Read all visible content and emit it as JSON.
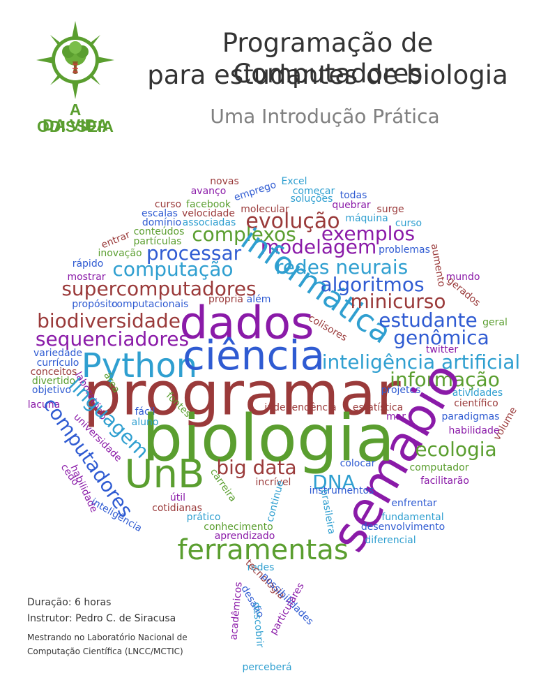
{
  "header": {
    "title_line1": "Programação de Computadores",
    "title_line2": "para estudantes de biologia",
    "subtitle": "Uma Introdução Prática"
  },
  "logo": {
    "line1": "A ODISSEIA",
    "line2": "DA VIDA",
    "icon": "compass-tree-icon",
    "color": "#5a9e2f"
  },
  "colors": {
    "red": "#9a3a3a",
    "green": "#5a9e2f",
    "blue": "#2f5bd2",
    "cyan": "#2f9fd0",
    "purple": "#8a1aa8"
  },
  "wordcloud": [
    {
      "t": "novas",
      "c": "red"
    },
    {
      "t": "Excel",
      "c": "cyan"
    },
    {
      "t": "avanço",
      "c": "purple"
    },
    {
      "t": "emprego",
      "c": "blue"
    },
    {
      "t": "começar",
      "c": "cyan"
    },
    {
      "t": "todas",
      "c": "blue"
    },
    {
      "t": "curso",
      "c": "red"
    },
    {
      "t": "facebook",
      "c": "green"
    },
    {
      "t": "soluções",
      "c": "cyan"
    },
    {
      "t": "quebrar",
      "c": "purple"
    },
    {
      "t": "escalas",
      "c": "blue"
    },
    {
      "t": "velocidade",
      "c": "red"
    },
    {
      "t": "molecular",
      "c": "red"
    },
    {
      "t": "surge",
      "c": "red"
    },
    {
      "t": "domínio",
      "c": "blue"
    },
    {
      "t": "associadas",
      "c": "cyan"
    },
    {
      "t": "máquina",
      "c": "cyan"
    },
    {
      "t": "curso",
      "c": "cyan"
    },
    {
      "t": "conteúdos",
      "c": "green"
    },
    {
      "t": "complexos",
      "c": "green"
    },
    {
      "t": "evolução",
      "c": "red"
    },
    {
      "t": "exemplos",
      "c": "purple"
    },
    {
      "t": "entrar",
      "c": "red"
    },
    {
      "t": "partículas",
      "c": "green"
    },
    {
      "t": "modelagem",
      "c": "purple"
    },
    {
      "t": "problemas",
      "c": "blue"
    },
    {
      "t": "inovação",
      "c": "green"
    },
    {
      "t": "processar",
      "c": "blue"
    },
    {
      "t": "aumento",
      "c": "red"
    },
    {
      "t": "rápido",
      "c": "blue"
    },
    {
      "t": "computação",
      "c": "cyan"
    },
    {
      "t": "informática",
      "c": "cyan"
    },
    {
      "t": "redes neurais",
      "c": "cyan"
    },
    {
      "t": "mostrar",
      "c": "purple"
    },
    {
      "t": "mundo",
      "c": "purple"
    },
    {
      "t": "algoritmos",
      "c": "blue"
    },
    {
      "t": "gerados",
      "c": "red"
    },
    {
      "t": "supercomputadores",
      "c": "red"
    },
    {
      "t": "minicurso",
      "c": "red"
    },
    {
      "t": "propósito",
      "c": "blue"
    },
    {
      "t": "computacionais",
      "c": "blue"
    },
    {
      "t": "própria",
      "c": "red"
    },
    {
      "t": "além",
      "c": "blue"
    },
    {
      "t": "dados",
      "c": "purple"
    },
    {
      "t": "biodiversidade",
      "c": "red"
    },
    {
      "t": "estudante",
      "c": "blue"
    },
    {
      "t": "geral",
      "c": "green"
    },
    {
      "t": "colisores",
      "c": "red"
    },
    {
      "t": "sequenciadores",
      "c": "purple"
    },
    {
      "t": "genômica",
      "c": "blue"
    },
    {
      "t": "twitter",
      "c": "purple"
    },
    {
      "t": "Python",
      "c": "cyan"
    },
    {
      "t": "ciência",
      "c": "blue"
    },
    {
      "t": "variedade",
      "c": "blue"
    },
    {
      "t": "inteligência artificial",
      "c": "cyan"
    },
    {
      "t": "currículo",
      "c": "blue"
    },
    {
      "t": "conceitos",
      "c": "red"
    },
    {
      "t": "programar",
      "c": "red"
    },
    {
      "t": "informação",
      "c": "green"
    },
    {
      "t": "divertido",
      "c": "green"
    },
    {
      "t": "laboratório",
      "c": "purple"
    },
    {
      "t": "área",
      "c": "green"
    },
    {
      "t": "objetivo",
      "c": "blue"
    },
    {
      "t": "projetos",
      "c": "blue"
    },
    {
      "t": "atividades",
      "c": "cyan"
    },
    {
      "t": "semabio",
      "c": "purple"
    },
    {
      "t": "científico",
      "c": "red"
    },
    {
      "t": "lacuna",
      "c": "purple"
    },
    {
      "t": "linguagem",
      "c": "cyan"
    },
    {
      "t": "fontes",
      "c": "green"
    },
    {
      "t": "independência",
      "c": "red"
    },
    {
      "t": "estatística",
      "c": "red"
    },
    {
      "t": "fácil",
      "c": "blue"
    },
    {
      "t": "mar",
      "c": "purple"
    },
    {
      "t": "paradigmas",
      "c": "blue"
    },
    {
      "t": "biologia",
      "c": "green"
    },
    {
      "t": "volume",
      "c": "red"
    },
    {
      "t": "aluno",
      "c": "cyan"
    },
    {
      "t": "habilidade",
      "c": "purple"
    },
    {
      "t": "universidade",
      "c": "purple"
    },
    {
      "t": "computadores",
      "c": "blue"
    },
    {
      "t": "ecologia",
      "c": "green"
    },
    {
      "t": "colocar",
      "c": "blue"
    },
    {
      "t": "big data",
      "c": "red"
    },
    {
      "t": "UnB",
      "c": "green"
    },
    {
      "t": "computador",
      "c": "green"
    },
    {
      "t": "cedo",
      "c": "purple"
    },
    {
      "t": "DNA",
      "c": "cyan"
    },
    {
      "t": "incrível",
      "c": "red"
    },
    {
      "t": "habilidade",
      "c": "purple"
    },
    {
      "t": "carreira",
      "c": "green"
    },
    {
      "t": "facilitarão",
      "c": "purple"
    },
    {
      "t": "instrumentos",
      "c": "blue"
    },
    {
      "t": "útil",
      "c": "purple"
    },
    {
      "t": "cotidianas",
      "c": "red"
    },
    {
      "t": "brasileira",
      "c": "cyan"
    },
    {
      "t": "enfrentar",
      "c": "blue"
    },
    {
      "t": "inteligência",
      "c": "blue"
    },
    {
      "t": "continue",
      "c": "cyan"
    },
    {
      "t": "prático",
      "c": "cyan"
    },
    {
      "t": "fundamental",
      "c": "cyan"
    },
    {
      "t": "conhecimento",
      "c": "green"
    },
    {
      "t": "desenvolvimento",
      "c": "blue"
    },
    {
      "t": "aprendizado",
      "c": "purple"
    },
    {
      "t": "diferencial",
      "c": "cyan"
    },
    {
      "t": "ferramentas",
      "c": "green"
    },
    {
      "t": "redes",
      "c": "cyan"
    },
    {
      "t": "tecnologia",
      "c": "red"
    },
    {
      "t": "possibilidades",
      "c": "blue"
    },
    {
      "t": "desafio",
      "c": "blue"
    },
    {
      "t": "particulares",
      "c": "purple"
    },
    {
      "t": "acadêmicos",
      "c": "purple"
    },
    {
      "t": "descobrir",
      "c": "cyan"
    },
    {
      "t": "perceberá",
      "c": "cyan"
    },
    {
      "t": "começar",
      "c": "blue"
    }
  ],
  "info": {
    "duration": "Duração: 6 horas",
    "instructor": "Instrutor: Pedro C. de Siracusa",
    "affiliation_line1": "Mestrando no Laboratório Nacional de",
    "affiliation_line2": "Computação Científica (LNCC/MCTIC)"
  }
}
